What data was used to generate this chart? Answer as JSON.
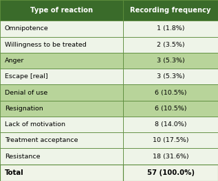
{
  "col1_header": "Type of reaction",
  "col2_header": "Recording frequency",
  "rows": [
    [
      "Omnipotence",
      "1 (1.8%)"
    ],
    [
      "Willingness to be treated",
      "2 (3.5%)"
    ],
    [
      "Anger",
      "3 (5.3%)"
    ],
    [
      "Escape [real]",
      "3 (5.3%)"
    ],
    [
      "Denial of use",
      "6 (10.5%)"
    ],
    [
      "Resignation",
      "6 (10.5%)"
    ],
    [
      "Lack of motivation",
      "8 (14.0%)"
    ],
    [
      "Treatment acceptance",
      "10 (17.5%)"
    ],
    [
      "Resistance",
      "18 (31.6%)"
    ],
    [
      "Total",
      "57 (100.0%)"
    ]
  ],
  "header_bg": "#3a6b2a",
  "header_text": "#ffffff",
  "row_colors": [
    "#eef4e8",
    "#eef4e8",
    "#b8d49a",
    "#eef4e8",
    "#b8d49a",
    "#b8d49a",
    "#eef4e8",
    "#eef4e8",
    "#eef4e8"
  ],
  "total_bg": "#f0f4e8",
  "border_color": "#5a8a3a",
  "col_split": 0.565,
  "font_size": 6.8,
  "header_font_size": 7.2
}
